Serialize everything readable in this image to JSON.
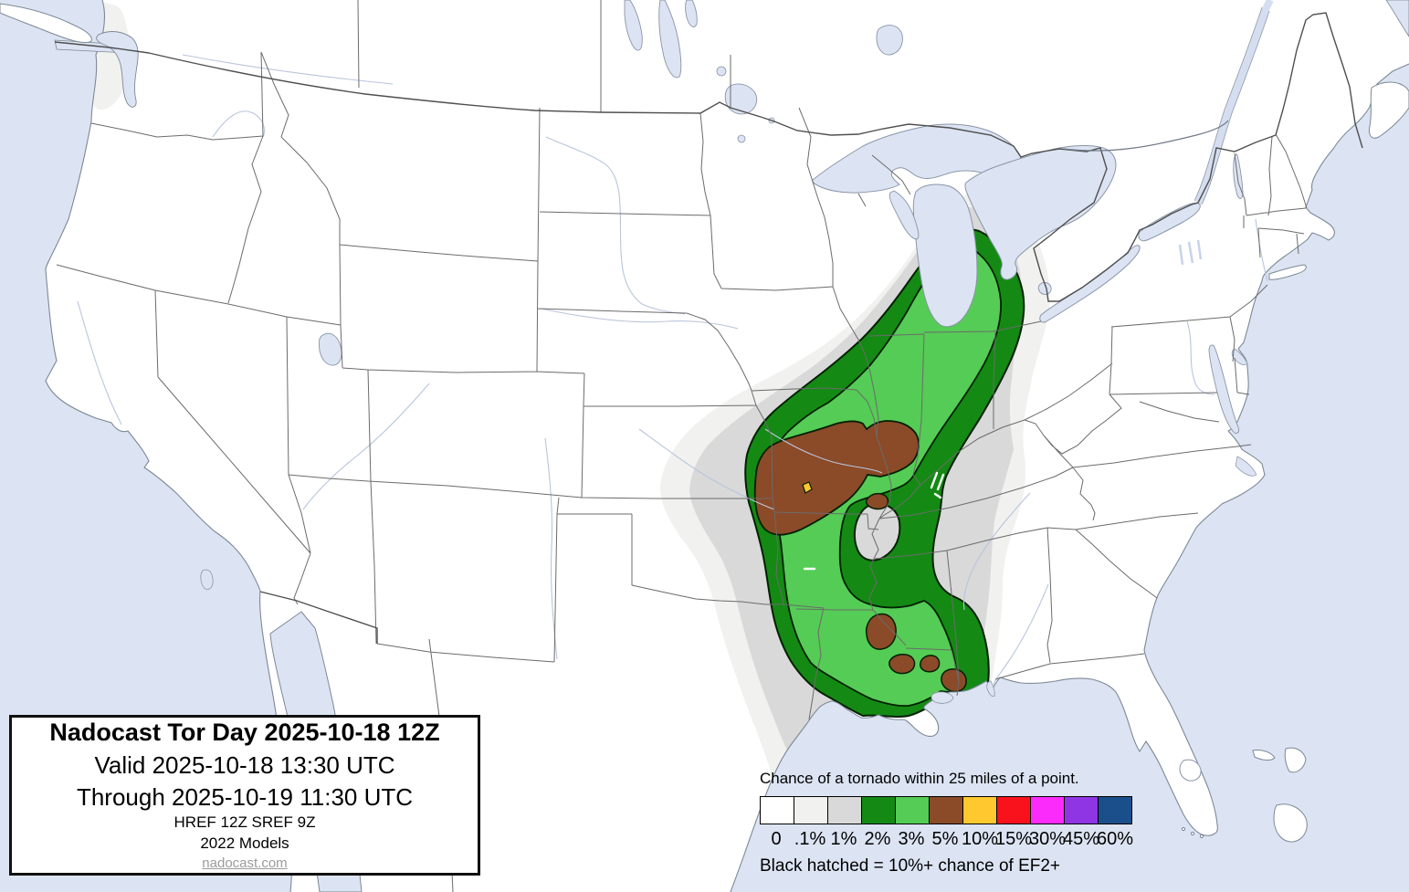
{
  "title_box": {
    "title": "Nadocast Tor Day 2025-10-18 12Z",
    "valid_line": "Valid 2025-10-18 13:30 UTC",
    "through_line": "Through 2025-10-19 11:30 UTC",
    "models_line1": "HREF 12Z SREF 9Z",
    "models_line2": "2022 Models",
    "link": "nadocast.com"
  },
  "legend": {
    "heading": "Chance of a tornado within 25 miles of a point.",
    "note": "Black hatched = 10%+ chance of EF2+",
    "bins": [
      {
        "label": "0",
        "color": "#ffffff"
      },
      {
        "label": ".1%",
        "color": "#f1f1ef"
      },
      {
        "label": "1%",
        "color": "#d9d9d9"
      },
      {
        "label": "2%",
        "color": "#148a14"
      },
      {
        "label": "3%",
        "color": "#55cc55"
      },
      {
        "label": "5%",
        "color": "#8b4a28"
      },
      {
        "label": "10%",
        "color": "#fec82e"
      },
      {
        "label": "15%",
        "color": "#f9111c"
      },
      {
        "label": "30%",
        "color": "#fb2cfb"
      },
      {
        "label": "45%",
        "color": "#8f35e3"
      },
      {
        "label": "60%",
        "color": "#1b4f8c"
      }
    ]
  },
  "map": {
    "region": "Continental United States",
    "water_color": "#dce4f3",
    "land_color": "#ffffff",
    "forecast_swath": "Gulf Coast (Louisiana/Mississippi) northeastward through Arkansas, Missouri, Illinois, Indiana into Michigan",
    "visible_probability_levels": [
      ".1%",
      "1%",
      "2%",
      "3%",
      "5%",
      "10%"
    ]
  }
}
